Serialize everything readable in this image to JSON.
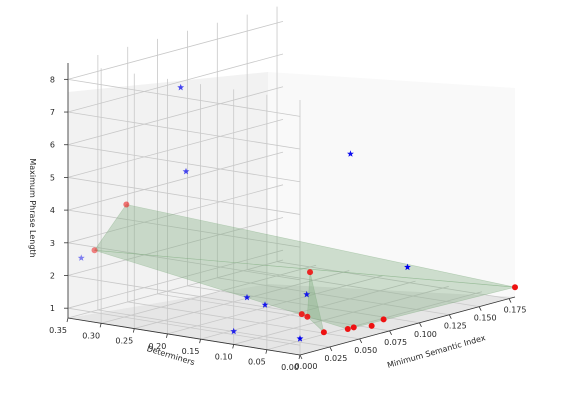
{
  "chart_data": {
    "type": "scatter",
    "projection": "3d",
    "x_label": "Minimum Semantic Index",
    "y_label": "Determiners",
    "z_label": "Maximum Phrase Length",
    "x_ticks": [
      "0.000",
      "0.025",
      "0.050",
      "0.075",
      "0.100",
      "0.125",
      "0.150",
      "0.175"
    ],
    "y_ticks": [
      "0.00",
      "0.05",
      "0.10",
      "0.15",
      "0.20",
      "0.25",
      "0.30",
      "0.35"
    ],
    "z_ticks": [
      "1",
      "2",
      "3",
      "4",
      "5",
      "6",
      "7",
      "8"
    ],
    "xlim": [
      0,
      0.18
    ],
    "ylim": [
      0,
      0.35
    ],
    "zlim": [
      0.7,
      8.5
    ],
    "grid": true,
    "legend": null,
    "colors": {
      "pane_left": "#f2f2f2",
      "pane_back": "#f9f9f9",
      "pane_floor": "#e6e6e6",
      "grid": "#c8c8c8",
      "star_series": "#0000ee",
      "circle_series": "#ee1111",
      "surface": "#7aa97a"
    },
    "series": [
      {
        "marker": "star",
        "points": [
          {
            "x": 0.0,
            "y": 0.33,
            "z": 2.6
          },
          {
            "x": 0.0,
            "y": 0.18,
            "z": 8.3
          },
          {
            "x": 0.01,
            "y": 0.19,
            "z": 5.6
          },
          {
            "x": 0.07,
            "y": 0.05,
            "z": 6.0
          },
          {
            "x": 0.0,
            "y": 0.08,
            "z": 2.2
          },
          {
            "x": 0.004,
            "y": 0.06,
            "z": 2.0
          },
          {
            "x": 0.0,
            "y": 0.0,
            "z": 1.2
          },
          {
            "x": 0.09,
            "y": 0.0,
            "z": 2.5
          },
          {
            "x": 0.05,
            "y": 0.08,
            "z": 1.8
          },
          {
            "x": 0.0,
            "y": 0.1,
            "z": 1.1
          }
        ]
      },
      {
        "marker": "circle",
        "points": [
          {
            "x": 0.0,
            "y": 0.31,
            "z": 2.9
          },
          {
            "x": 0.01,
            "y": 0.28,
            "z": 4.3
          },
          {
            "x": 0.05,
            "y": 0.075,
            "z": 2.5
          },
          {
            "x": 0.045,
            "y": 0.07,
            "z": 1.2
          },
          {
            "x": 0.042,
            "y": 0.073,
            "z": 1.3
          },
          {
            "x": 0.02,
            "y": 0.0,
            "z": 1.2
          },
          {
            "x": 0.04,
            "y": 0.0,
            "z": 1.1
          },
          {
            "x": 0.045,
            "y": 0.0,
            "z": 1.1
          },
          {
            "x": 0.06,
            "y": 0.0,
            "z": 1.0
          },
          {
            "x": 0.07,
            "y": 0.0,
            "z": 1.1
          },
          {
            "x": 0.18,
            "y": 0.0,
            "z": 1.0
          }
        ]
      }
    ],
    "surface": {
      "triangles": [
        [
          {
            "x": 0.0,
            "y": 0.31,
            "z": 2.9
          },
          {
            "x": 0.01,
            "y": 0.28,
            "z": 4.3
          },
          {
            "x": 0.18,
            "y": 0.0,
            "z": 1.0
          }
        ],
        [
          {
            "x": 0.0,
            "y": 0.31,
            "z": 2.9
          },
          {
            "x": 0.18,
            "y": 0.0,
            "z": 1.0
          },
          {
            "x": 0.04,
            "y": 0.0,
            "z": 1.1
          }
        ],
        [
          {
            "x": 0.05,
            "y": 0.075,
            "z": 2.5
          },
          {
            "x": 0.045,
            "y": 0.07,
            "z": 1.2
          },
          {
            "x": 0.02,
            "y": 0.0,
            "z": 1.2
          }
        ]
      ]
    }
  }
}
